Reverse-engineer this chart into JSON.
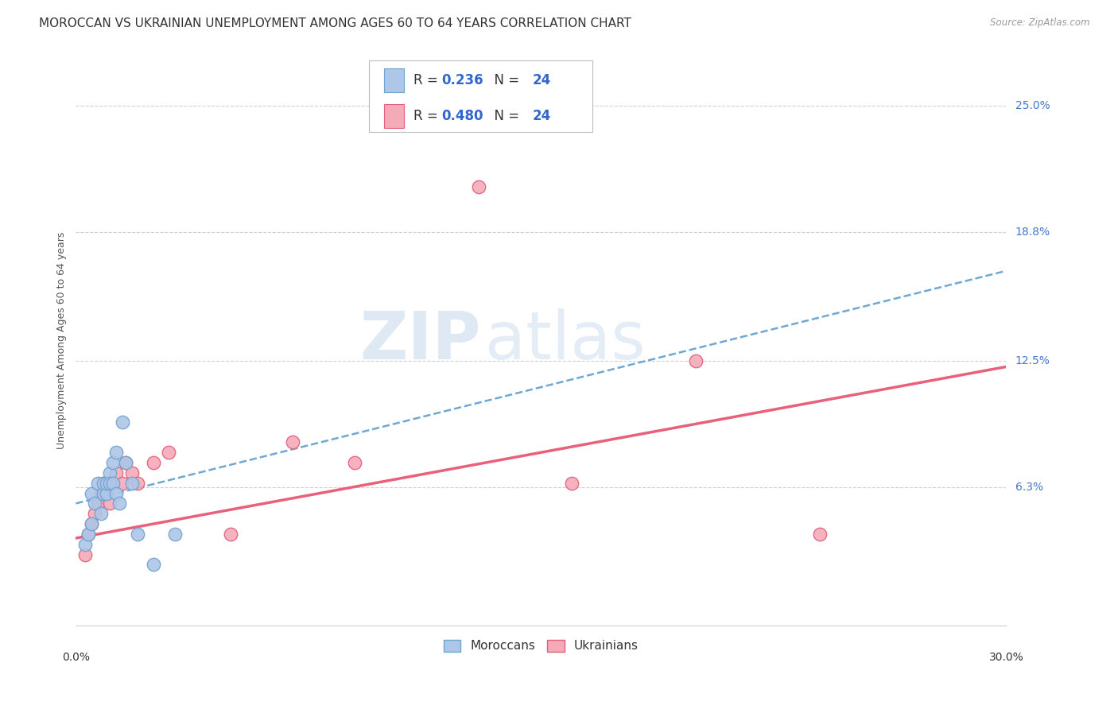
{
  "title": "MOROCCAN VS UKRAINIAN UNEMPLOYMENT AMONG AGES 60 TO 64 YEARS CORRELATION CHART",
  "source": "Source: ZipAtlas.com",
  "ylabel": "Unemployment Among Ages 60 to 64 years",
  "ytick_labels": [
    "25.0%",
    "18.8%",
    "12.5%",
    "6.3%"
  ],
  "ytick_values": [
    0.25,
    0.188,
    0.125,
    0.063
  ],
  "xlim": [
    0.0,
    0.3
  ],
  "ylim": [
    -0.005,
    0.275
  ],
  "moroccan_color": "#aec6e8",
  "moroccan_edge_color": "#6fa3d0",
  "ukrainian_color": "#f5aab8",
  "ukrainian_edge_color": "#e0607a",
  "moroccan_line_color": "#5599cc",
  "ukrainian_line_color": "#e8607a",
  "background_color": "#ffffff",
  "grid_color": "#d0d0d0",
  "moroccans_label": "Moroccans",
  "ukrainians_label": "Ukrainians",
  "moroccan_R": "0.236",
  "ukrainian_R": "0.480",
  "moroccan_N": "24",
  "ukrainian_N": "24",
  "moroccan_x": [
    0.003,
    0.004,
    0.005,
    0.005,
    0.006,
    0.007,
    0.008,
    0.009,
    0.009,
    0.01,
    0.01,
    0.011,
    0.011,
    0.012,
    0.012,
    0.013,
    0.013,
    0.014,
    0.015,
    0.016,
    0.018,
    0.02,
    0.025,
    0.032
  ],
  "moroccan_y": [
    0.035,
    0.04,
    0.045,
    0.06,
    0.055,
    0.065,
    0.05,
    0.06,
    0.065,
    0.06,
    0.065,
    0.07,
    0.065,
    0.075,
    0.065,
    0.08,
    0.06,
    0.055,
    0.095,
    0.075,
    0.065,
    0.04,
    0.025,
    0.04
  ],
  "ukrainian_x": [
    0.003,
    0.004,
    0.005,
    0.006,
    0.007,
    0.008,
    0.009,
    0.01,
    0.011,
    0.012,
    0.013,
    0.015,
    0.016,
    0.018,
    0.02,
    0.025,
    0.03,
    0.05,
    0.07,
    0.09,
    0.13,
    0.16,
    0.2,
    0.24
  ],
  "ukrainian_y": [
    0.03,
    0.04,
    0.045,
    0.05,
    0.055,
    0.06,
    0.065,
    0.065,
    0.055,
    0.065,
    0.07,
    0.065,
    0.075,
    0.07,
    0.065,
    0.075,
    0.08,
    0.04,
    0.085,
    0.075,
    0.21,
    0.065,
    0.125,
    0.04
  ],
  "watermark_zip": "ZIP",
  "watermark_atlas": "atlas",
  "title_fontsize": 11,
  "axis_label_fontsize": 9,
  "tick_fontsize": 10,
  "right_tick_color": "#4477cc",
  "source_color": "#999999"
}
